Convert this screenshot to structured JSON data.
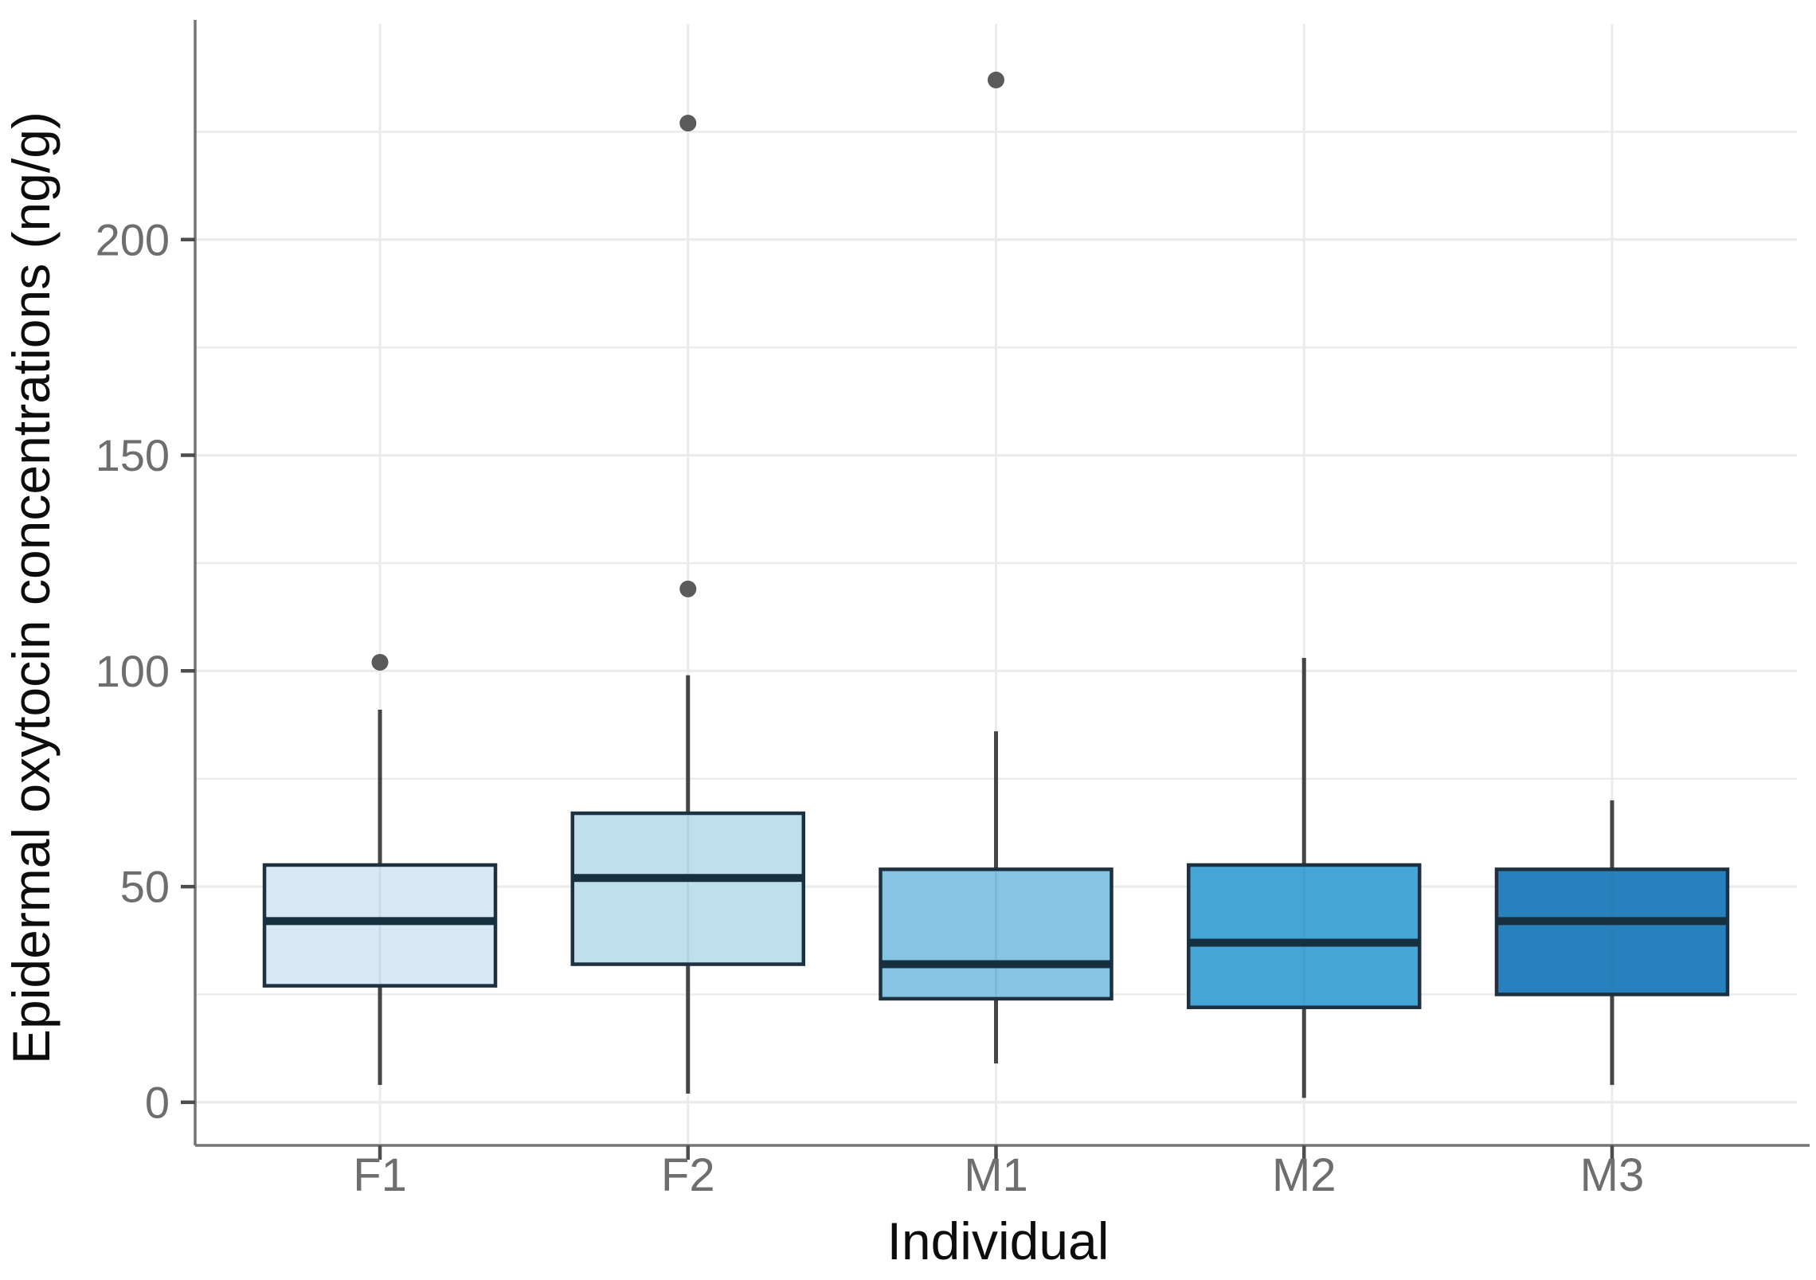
{
  "figure": {
    "background": "#ffffff"
  },
  "chart_data": {
    "type": "box",
    "title": "",
    "xlabel": "Individual",
    "ylabel": "Epidermal oxytocin concentrations (ng/g)",
    "categories": [
      "F1",
      "F2",
      "M1",
      "M2",
      "M3"
    ],
    "y_ticks": [
      0,
      50,
      100,
      150,
      200
    ],
    "y_minor_gridlines": [
      25,
      75,
      125,
      175,
      225
    ],
    "ylim": [
      -10,
      250
    ],
    "grid": "light horizontal gridlines every 25 units plus one light vertical gridline per category",
    "legend_position": "none",
    "series": [
      {
        "name": "F1",
        "min": 4,
        "q1": 27,
        "median": 42,
        "q3": 55,
        "max": 91,
        "outliers": [
          102
        ],
        "fill": "#d8e8f5"
      },
      {
        "name": "F2",
        "min": 2,
        "q1": 32,
        "median": 52,
        "q3": 67,
        "max": 99,
        "outliers": [
          119,
          227
        ],
        "fill": "#bfdfee"
      },
      {
        "name": "M1",
        "min": 9,
        "q1": 24,
        "median": 32,
        "q3": 54,
        "max": 86,
        "outliers": [
          237
        ],
        "fill": "#85c5e3"
      },
      {
        "name": "M2",
        "min": 1,
        "q1": 22,
        "median": 37,
        "q3": 55,
        "max": 103,
        "outliers": [],
        "fill": "#45a5d6"
      },
      {
        "name": "M3",
        "min": 4,
        "q1": 25,
        "median": 42,
        "q3": 54,
        "max": 70,
        "outliers": [],
        "fill": "#2880bc"
      }
    ],
    "colors": {
      "box_border": "#1d3140",
      "median_line": "#16303f",
      "whisker": "#454545",
      "outlier": "#5a5a5a",
      "gridline": "#ebebeb",
      "axis_line": "#757575",
      "tick_mark": "#4d4d4d",
      "tick_label": "#6e6e6e",
      "axis_title": "#0d0d0d"
    }
  }
}
